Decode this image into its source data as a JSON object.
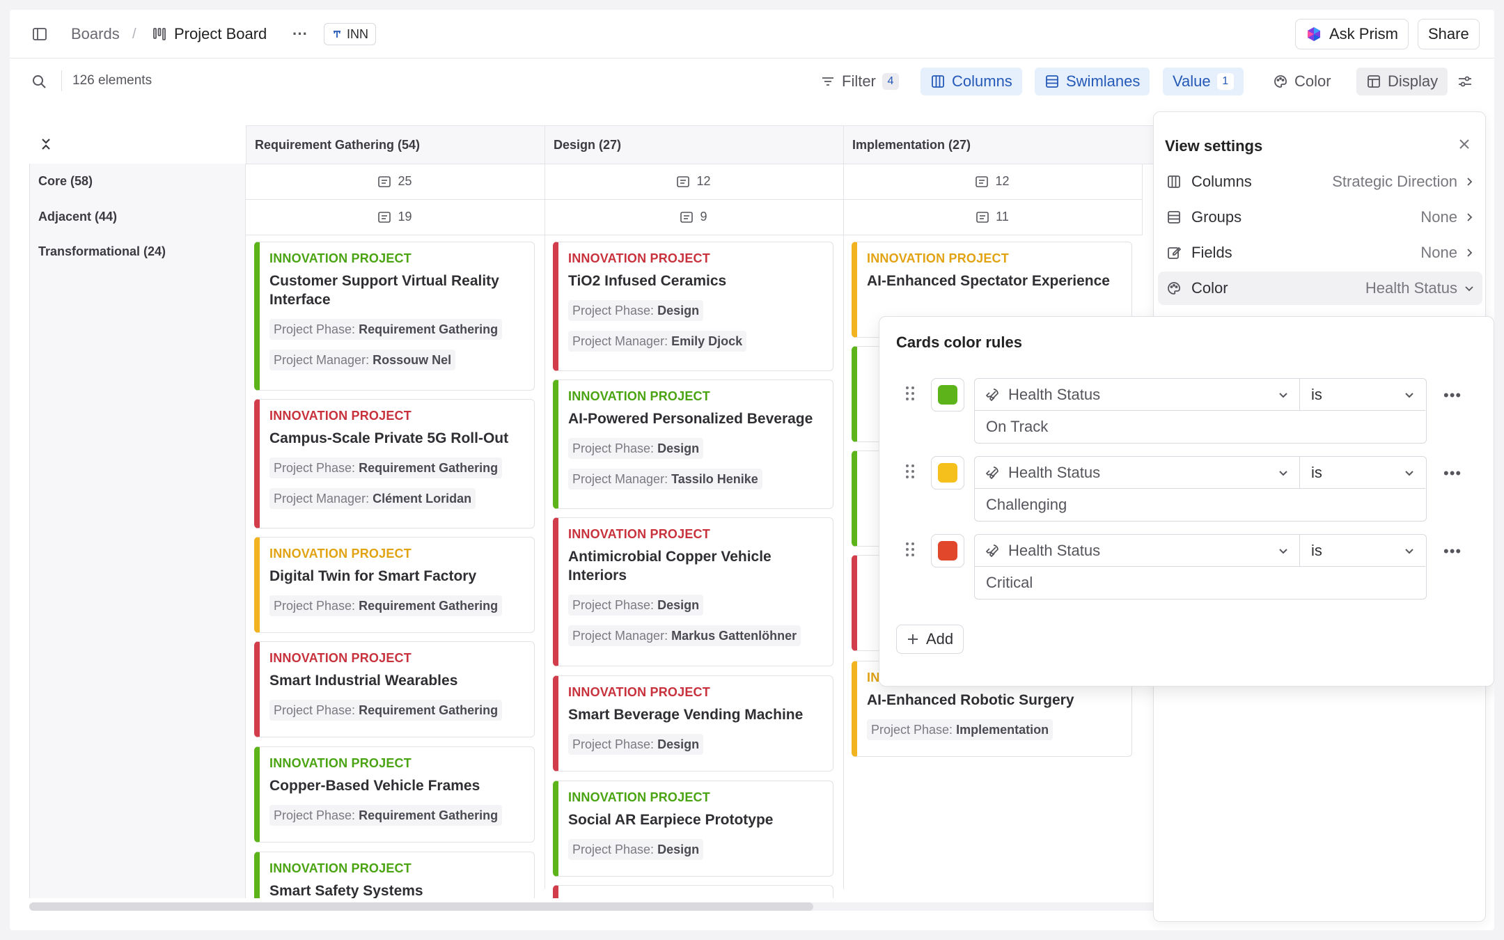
{
  "header": {
    "boards_label": "Boards",
    "separator": "/",
    "board_title": "Project Board",
    "more": "···",
    "tag": "INN",
    "ask_prism": "Ask Prism",
    "share": "Share"
  },
  "toolbar": {
    "element_count": "126 elements",
    "filter": "Filter",
    "filter_count": "4",
    "columns": "Columns",
    "swimlanes": "Swimlanes",
    "value": "Value",
    "value_count": "1",
    "color": "Color",
    "display": "Display"
  },
  "board": {
    "columns": [
      {
        "label": "Requirement Gathering (54)",
        "core": "25",
        "adjacent": "19"
      },
      {
        "label": "Design (27)",
        "core": "12",
        "adjacent": "9"
      },
      {
        "label": "Implementation (27)",
        "core": "12",
        "adjacent": "11"
      }
    ],
    "lanes": [
      "Core (58)",
      "Adjacent (44)",
      "Transformational (24)"
    ],
    "card_type": "INNOVATION PROJECT",
    "phase_label": "Project Phase:",
    "manager_label": "Project Manager:",
    "col1_cards": [
      {
        "title": "Customer Support Virtual Reality Interface",
        "phase": "Requirement Gathering",
        "manager": "Rossouw Nel"
      },
      {
        "title": "Campus-Scale Private 5G Roll-Out",
        "phase": "Requirement Gathering",
        "manager": "Clément Loridan"
      },
      {
        "title": "Digital Twin for Smart Factory",
        "phase": "Requirement Gathering"
      },
      {
        "title": "Smart Industrial Wearables",
        "phase": "Requirement Gathering"
      },
      {
        "title": "Copper-Based Vehicle Frames",
        "phase": "Requirement Gathering"
      },
      {
        "title": "Smart Safety Systems"
      }
    ],
    "col2_cards": [
      {
        "title": "TiO2 Infused Ceramics",
        "phase": "Design",
        "manager": "Emily Djock"
      },
      {
        "title": "AI-Powered Personalized Beverage",
        "phase": "Design",
        "manager": "Tassilo Henike"
      },
      {
        "title": "Antimicrobial Copper Vehicle Interiors",
        "phase": "Design",
        "manager": "Markus Gattenlöhner"
      },
      {
        "title": "Smart Beverage Vending Machine",
        "phase": "Design"
      },
      {
        "title": "Social AR Earpiece Prototype",
        "phase": "Design"
      }
    ],
    "col3_cards": [
      {
        "title": "AI-Enhanced Spectator Experience"
      },
      {
        "title": "AI-Enhanced Robotic Surgery",
        "phase": "Implementation"
      }
    ]
  },
  "view_settings": {
    "title": "View settings",
    "rows": [
      {
        "label": "Columns",
        "value": "Strategic Direction"
      },
      {
        "label": "Groups",
        "value": "None"
      },
      {
        "label": "Fields",
        "value": "None"
      },
      {
        "label": "Color",
        "value": "Health Status"
      }
    ]
  },
  "color_rules": {
    "title": "Cards color rules",
    "rules": [
      {
        "field": "Health Status",
        "operator": "is",
        "value": "On Track",
        "color": "#5cb31a"
      },
      {
        "field": "Health Status",
        "operator": "is",
        "value": "Challenging",
        "color": "#f5bf1c"
      },
      {
        "field": "Health Status",
        "operator": "is",
        "value": "Critical",
        "color": "#e0472b"
      }
    ],
    "add": "Add"
  },
  "colors": {
    "green": "#5cb31a",
    "red": "#d13d4a",
    "amber": "#f2b321",
    "accent_blue": "#2459b8"
  }
}
